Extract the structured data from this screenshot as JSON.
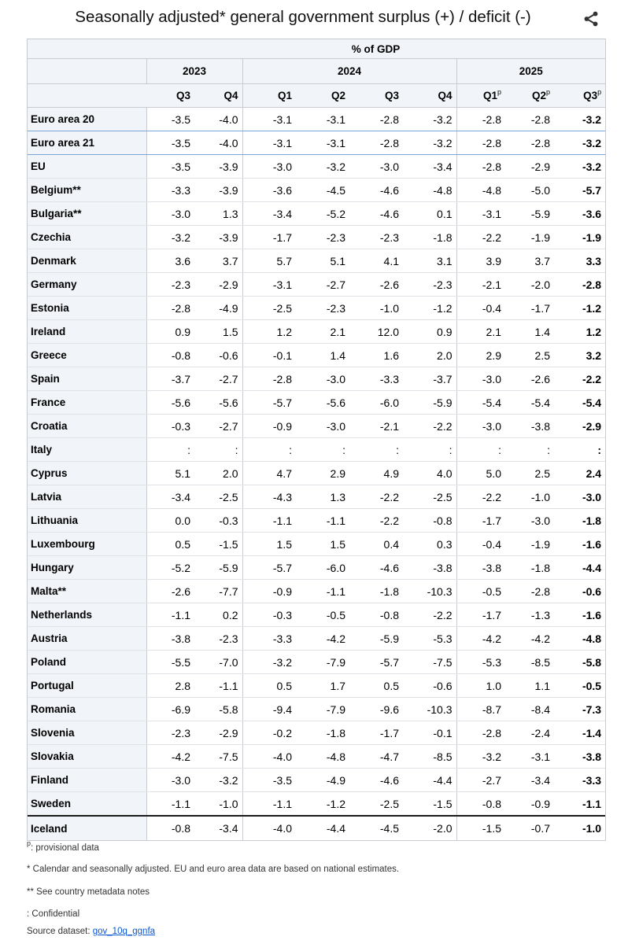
{
  "title": "Seasonally adjusted* general government surplus (+) / deficit (-)",
  "share_icon": "share-icon",
  "unit": "% of GDP",
  "years": [
    {
      "label": "2023",
      "span": 2
    },
    {
      "label": "2024",
      "span": 4
    },
    {
      "label": "2025",
      "span": 3
    }
  ],
  "quarters": [
    "Q3",
    "Q4",
    "Q1",
    "Q2",
    "Q3",
    "Q4",
    "Q1",
    "Q2",
    "Q3"
  ],
  "provisional_mark": "p",
  "rows": [
    {
      "name": "Euro area 20",
      "values": [
        "-3.5",
        "-4.0",
        "-3.1",
        "-3.1",
        "-2.8",
        "-3.2",
        "-2.8",
        "-2.8",
        "-3.2"
      ]
    },
    {
      "name": "Euro area 21",
      "values": [
        "-3.5",
        "-4.0",
        "-3.1",
        "-3.1",
        "-2.8",
        "-3.2",
        "-2.8",
        "-2.8",
        "-3.2"
      ]
    },
    {
      "name": "EU",
      "values": [
        "-3.5",
        "-3.9",
        "-3.0",
        "-3.2",
        "-3.0",
        "-3.4",
        "-2.8",
        "-2.9",
        "-3.2"
      ]
    },
    {
      "name": "Belgium**",
      "values": [
        "-3.3",
        "-3.9",
        "-3.6",
        "-4.5",
        "-4.6",
        "-4.8",
        "-4.8",
        "-5.0",
        "-5.7"
      ]
    },
    {
      "name": "Bulgaria**",
      "values": [
        "-3.0",
        "1.3",
        "-3.4",
        "-5.2",
        "-4.6",
        "0.1",
        "-3.1",
        "-5.9",
        "-3.6"
      ]
    },
    {
      "name": "Czechia",
      "values": [
        "-3.2",
        "-3.9",
        "-1.7",
        "-2.3",
        "-2.3",
        "-1.8",
        "-2.2",
        "-1.9",
        "-1.9"
      ]
    },
    {
      "name": "Denmark",
      "values": [
        "3.6",
        "3.7",
        "5.7",
        "5.1",
        "4.1",
        "3.1",
        "3.9",
        "3.7",
        "3.3"
      ]
    },
    {
      "name": "Germany",
      "values": [
        "-2.3",
        "-2.9",
        "-3.1",
        "-2.7",
        "-2.6",
        "-2.3",
        "-2.1",
        "-2.0",
        "-2.8"
      ]
    },
    {
      "name": "Estonia",
      "values": [
        "-2.8",
        "-4.9",
        "-2.5",
        "-2.3",
        "-1.0",
        "-1.2",
        "-0.4",
        "-1.7",
        "-1.2"
      ]
    },
    {
      "name": "Ireland",
      "values": [
        "0.9",
        "1.5",
        "1.2",
        "2.1",
        "12.0",
        "0.9",
        "2.1",
        "1.4",
        "1.2"
      ]
    },
    {
      "name": "Greece",
      "values": [
        "-0.8",
        "-0.6",
        "-0.1",
        "1.4",
        "1.6",
        "2.0",
        "2.9",
        "2.5",
        "3.2"
      ]
    },
    {
      "name": "Spain",
      "values": [
        "-3.7",
        "-2.7",
        "-2.8",
        "-3.0",
        "-3.3",
        "-3.7",
        "-3.0",
        "-2.6",
        "-2.2"
      ]
    },
    {
      "name": "France",
      "values": [
        "-5.6",
        "-5.6",
        "-5.7",
        "-5.6",
        "-6.0",
        "-5.9",
        "-5.4",
        "-5.4",
        "-5.4"
      ]
    },
    {
      "name": "Croatia",
      "values": [
        "-0.3",
        "-2.7",
        "-0.9",
        "-3.0",
        "-2.1",
        "-2.2",
        "-3.0",
        "-3.8",
        "-2.9"
      ]
    },
    {
      "name": "Italy",
      "values": [
        ":",
        ":",
        ":",
        ":",
        ":",
        ":",
        ":",
        ":",
        ":"
      ]
    },
    {
      "name": "Cyprus",
      "values": [
        "5.1",
        "2.0",
        "4.7",
        "2.9",
        "4.9",
        "4.0",
        "5.0",
        "2.5",
        "2.4"
      ]
    },
    {
      "name": "Latvia",
      "values": [
        "-3.4",
        "-2.5",
        "-4.3",
        "1.3",
        "-2.2",
        "-2.5",
        "-2.2",
        "-1.0",
        "-3.0"
      ]
    },
    {
      "name": "Lithuania",
      "values": [
        "0.0",
        "-0.3",
        "-1.1",
        "-1.1",
        "-2.2",
        "-0.8",
        "-1.7",
        "-3.0",
        "-1.8"
      ]
    },
    {
      "name": "Luxembourg",
      "values": [
        "0.5",
        "-1.5",
        "1.5",
        "1.5",
        "0.4",
        "0.3",
        "-0.4",
        "-1.9",
        "-1.6"
      ]
    },
    {
      "name": "Hungary",
      "values": [
        "-5.2",
        "-5.9",
        "-5.7",
        "-6.0",
        "-4.6",
        "-3.8",
        "-3.8",
        "-1.8",
        "-4.4"
      ]
    },
    {
      "name": "Malta**",
      "values": [
        "-2.6",
        "-7.7",
        "-0.9",
        "-1.1",
        "-1.8",
        "-10.3",
        "-0.5",
        "-2.8",
        "-0.6"
      ]
    },
    {
      "name": "Netherlands",
      "values": [
        "-1.1",
        "0.2",
        "-0.3",
        "-0.5",
        "-0.8",
        "-2.2",
        "-1.7",
        "-1.3",
        "-1.6"
      ]
    },
    {
      "name": "Austria",
      "values": [
        "-3.8",
        "-2.3",
        "-3.3",
        "-4.2",
        "-5.9",
        "-5.3",
        "-4.2",
        "-4.2",
        "-4.8"
      ]
    },
    {
      "name": "Poland",
      "values": [
        "-5.5",
        "-7.0",
        "-3.2",
        "-7.9",
        "-5.7",
        "-7.5",
        "-5.3",
        "-8.5",
        "-5.8"
      ]
    },
    {
      "name": "Portugal",
      "values": [
        "2.8",
        "-1.1",
        "0.5",
        "1.7",
        "0.5",
        "-0.6",
        "1.0",
        "1.1",
        "-0.5"
      ]
    },
    {
      "name": "Romania",
      "values": [
        "-6.9",
        "-5.8",
        "-9.4",
        "-7.9",
        "-9.6",
        "-10.3",
        "-8.7",
        "-8.4",
        "-7.3"
      ]
    },
    {
      "name": "Slovenia",
      "values": [
        "-2.3",
        "-2.9",
        "-0.2",
        "-1.8",
        "-1.7",
        "-0.1",
        "-2.8",
        "-2.4",
        "-1.4"
      ]
    },
    {
      "name": "Slovakia",
      "values": [
        "-4.2",
        "-7.5",
        "-4.0",
        "-4.8",
        "-4.7",
        "-8.5",
        "-3.2",
        "-3.1",
        "-3.8"
      ]
    },
    {
      "name": "Finland",
      "values": [
        "-3.0",
        "-3.2",
        "-3.5",
        "-4.9",
        "-4.6",
        "-4.4",
        "-2.7",
        "-3.4",
        "-3.3"
      ]
    },
    {
      "name": "Sweden",
      "values": [
        "-1.1",
        "-1.0",
        "-1.1",
        "-1.2",
        "-2.5",
        "-1.5",
        "-0.8",
        "-0.9",
        "-1.1"
      ]
    },
    {
      "name": "Iceland",
      "values": [
        "-0.8",
        "-3.4",
        "-4.0",
        "-4.4",
        "-4.5",
        "-2.0",
        "-1.5",
        "-0.7",
        "-1.0"
      ]
    }
  ],
  "notes": {
    "provisional_mark": "p",
    "provisional": ": provisional data",
    "seasonal": "* Calendar and seasonally adjusted. EU and euro area data are based on national estimates.",
    "metadata": "** See country metadata notes",
    "confidential": " : Confidential",
    "source_label": "Source dataset: ",
    "source_link": "gov_10q_ggnfa"
  }
}
